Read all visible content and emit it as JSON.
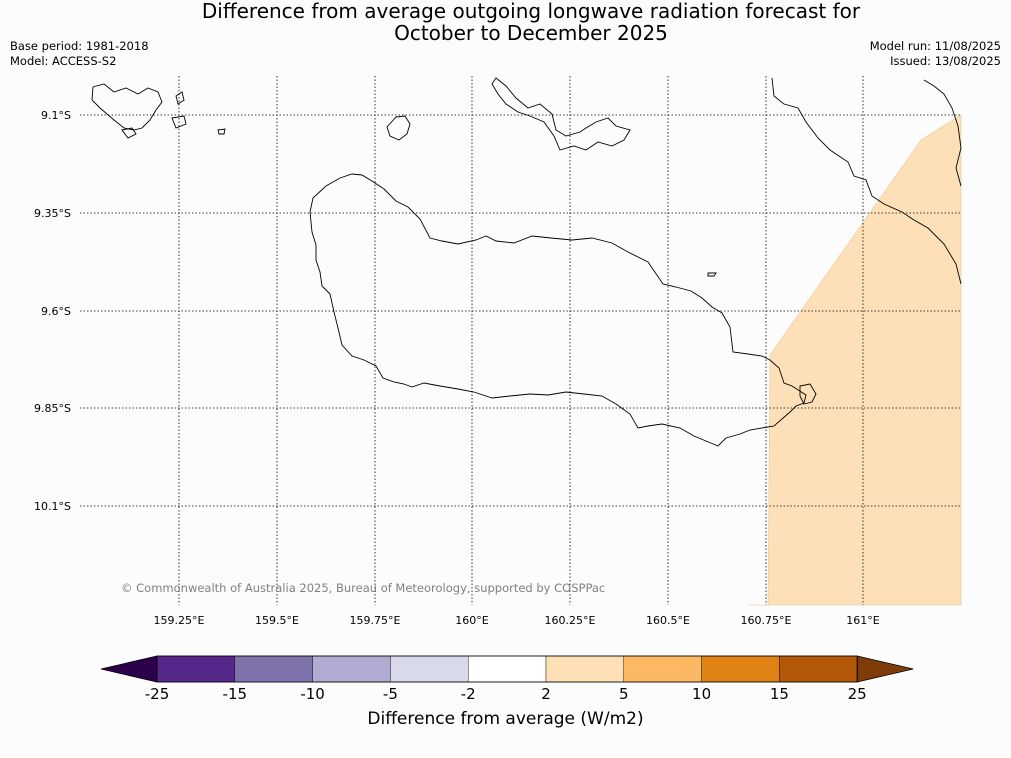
{
  "title": {
    "line1": "Difference from average outgoing longwave radiation forecast for",
    "line2": "October to December 2025"
  },
  "meta": {
    "base_period": "Base period: 1981-2018",
    "model": "Model: ACCESS-S2",
    "model_run": "Model run: 11/08/2025",
    "issued": "Issued: 13/08/2025"
  },
  "map": {
    "lon_ticks": [
      "159.25°E",
      "159.5°E",
      "159.75°E",
      "160°E",
      "160.25°E",
      "160.5°E",
      "160.75°E",
      "161°E"
    ],
    "lat_ticks": [
      "9.1°S",
      "9.35°S",
      "9.6°S",
      "9.85°S",
      "10.1°S"
    ],
    "copyright": "© Commonwealth of Australia 2025, Bureau of Meteorology, supported by COSPPac",
    "shaded_colour": "#fde0b8"
  },
  "colorbar": {
    "label": "Difference from average (W/m2)",
    "ticks": [
      "-25",
      "-15",
      "-10",
      "-5",
      "-2",
      "2",
      "5",
      "10",
      "15",
      "25"
    ],
    "colors": [
      "#2d004b",
      "#542788",
      "#8073ac",
      "#b2abd2",
      "#d8daeb",
      "#ffffff",
      "#fee0b6",
      "#fdb863",
      "#e08214",
      "#b35806",
      "#7f3b08"
    ]
  }
}
